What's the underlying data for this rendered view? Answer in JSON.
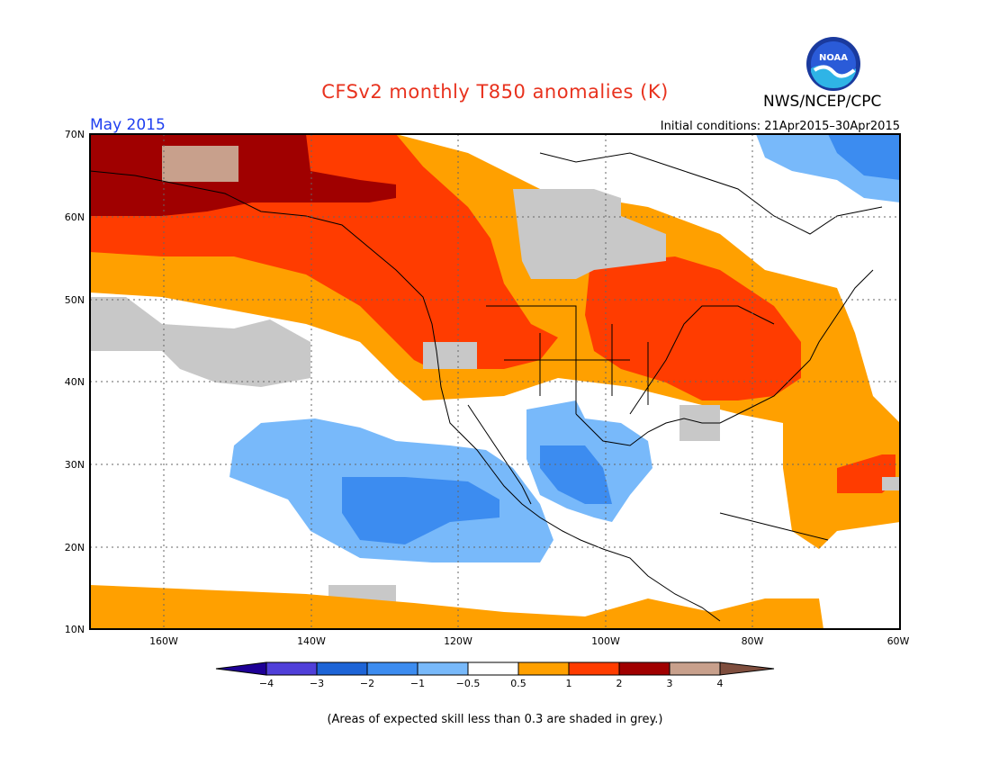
{
  "title": "CFSv2 monthly T850 anomalies (K)",
  "valid_month": "May 2015",
  "initial_conditions": "Initial conditions: 21Apr2015–30Apr2015",
  "agency": "NWS/NCEP/CPC",
  "logo": {
    "text": "NOAA",
    "icon": "noaa-logo-icon"
  },
  "note": "(Areas of expected skill less than 0.3 are shaded in grey.)",
  "map": {
    "lon_range": [
      "170W",
      "60W"
    ],
    "lat_range": [
      "10N",
      "70N"
    ],
    "lat_labels": [
      "70N",
      "60N",
      "50N",
      "40N",
      "30N",
      "20N",
      "10N"
    ],
    "lon_labels": [
      "160W",
      "140W",
      "120W",
      "100W",
      "80W",
      "60W"
    ]
  },
  "colorbar": {
    "ticks": [
      "−4",
      "−3",
      "−2",
      "−1",
      "−0.5",
      "0.5",
      "1",
      "2",
      "3",
      "4"
    ],
    "colors": [
      "#1e0096",
      "#503fd9",
      "#1d64d7",
      "#3c8cf0",
      "#78b9fa",
      "#ffffff",
      "#ffa000",
      "#ff3c00",
      "#a00000",
      "#c8a08c",
      "#7f4e3e"
    ]
  },
  "palette": {
    "skill_grey": "#c8c8c8",
    "anom_0_5_1": "#ffa000",
    "anom_1_2": "#ff3c00",
    "anom_2_3": "#a00000",
    "anom_3_4": "#c8a08c",
    "anom_neg_0_5_1": "#78b9fa",
    "anom_neg_1_2": "#3c8cf0"
  }
}
